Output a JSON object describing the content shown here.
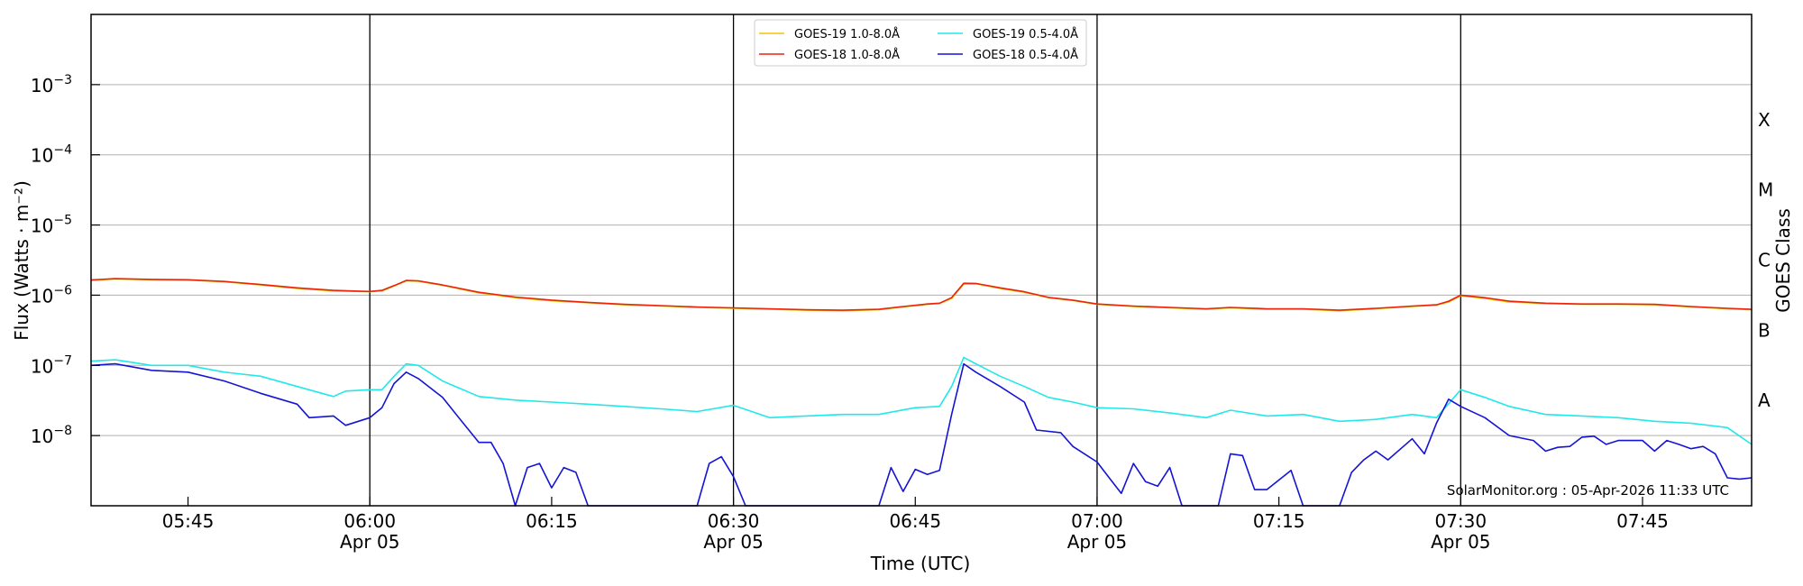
{
  "chart_data": {
    "type": "line",
    "xlabel": "Time (UTC)",
    "ylabel": "Flux (Watts · m⁻²)",
    "right_label": "GOES Class",
    "y_scale": "log",
    "ylim": [
      1e-09,
      0.01
    ],
    "xlim": [
      "05:37",
      "07:54"
    ],
    "y_ticks": [
      {
        "value": 1e-08,
        "base": "10",
        "exp": "−8"
      },
      {
        "value": 1e-07,
        "base": "10",
        "exp": "−7"
      },
      {
        "value": 1e-06,
        "base": "10",
        "exp": "−6"
      },
      {
        "value": 1e-05,
        "base": "10",
        "exp": "−5"
      },
      {
        "value": 0.0001,
        "base": "10",
        "exp": "−4"
      },
      {
        "value": 0.001,
        "base": "10",
        "exp": "−3"
      }
    ],
    "x_ticks": [
      {
        "time": "05:45",
        "label": "05:45",
        "sub": ""
      },
      {
        "time": "06:00",
        "label": "06:00",
        "sub": "Apr 05"
      },
      {
        "time": "06:15",
        "label": "06:15",
        "sub": ""
      },
      {
        "time": "06:30",
        "label": "06:30",
        "sub": "Apr 05"
      },
      {
        "time": "06:45",
        "label": "06:45",
        "sub": ""
      },
      {
        "time": "07:00",
        "label": "07:00",
        "sub": "Apr 05"
      },
      {
        "time": "07:15",
        "label": "07:15",
        "sub": ""
      },
      {
        "time": "07:30",
        "label": "07:30",
        "sub": "Apr 05"
      },
      {
        "time": "07:45",
        "label": "07:45",
        "sub": ""
      }
    ],
    "vertical_lines": [
      "06:00",
      "06:30",
      "07:00",
      "07:30"
    ],
    "goes_classes": [
      {
        "label": "A",
        "value": 3.16e-08
      },
      {
        "label": "B",
        "value": 3.16e-07
      },
      {
        "label": "C",
        "value": 3.16e-06
      },
      {
        "label": "M",
        "value": 3.16e-05
      },
      {
        "label": "X",
        "value": 0.000316
      }
    ],
    "grid": true,
    "legend_position": "top-center",
    "series": [
      {
        "name": "GOES-19 1.0-8.0Å",
        "color": "#f5c400",
        "points": [
          [
            "05:37",
            1.62e-06
          ],
          [
            "05:39",
            1.7e-06
          ],
          [
            "05:42",
            1.66e-06
          ],
          [
            "05:45",
            1.64e-06
          ],
          [
            "05:48",
            1.55e-06
          ],
          [
            "05:51",
            1.4e-06
          ],
          [
            "05:54",
            1.25e-06
          ],
          [
            "05:57",
            1.15e-06
          ],
          [
            "06:00",
            1.12e-06
          ],
          [
            "06:01",
            1.15e-06
          ],
          [
            "06:02",
            1.35e-06
          ],
          [
            "06:03",
            1.6e-06
          ],
          [
            "06:04",
            1.58e-06
          ],
          [
            "06:06",
            1.38e-06
          ],
          [
            "06:09",
            1.08e-06
          ],
          [
            "06:12",
            9.2e-07
          ],
          [
            "06:15",
            8.3e-07
          ],
          [
            "06:18",
            7.8e-07
          ],
          [
            "06:21",
            7.3e-07
          ],
          [
            "06:24",
            7e-07
          ],
          [
            "06:27",
            6.7e-07
          ],
          [
            "06:30",
            6.5e-07
          ],
          [
            "06:33",
            6.3e-07
          ],
          [
            "06:36",
            6.1e-07
          ],
          [
            "06:39",
            6e-07
          ],
          [
            "06:42",
            6.2e-07
          ],
          [
            "06:44",
            6.8e-07
          ],
          [
            "06:46",
            7.4e-07
          ],
          [
            "06:47",
            7.6e-07
          ],
          [
            "06:48",
            9e-07
          ],
          [
            "06:49",
            1.45e-06
          ],
          [
            "06:50",
            1.45e-06
          ],
          [
            "06:52",
            1.25e-06
          ],
          [
            "06:54",
            1.1e-06
          ],
          [
            "06:56",
            9.2e-07
          ],
          [
            "06:58",
            8.4e-07
          ],
          [
            "07:00",
            7.4e-07
          ],
          [
            "07:03",
            6.9e-07
          ],
          [
            "07:06",
            6.6e-07
          ],
          [
            "07:09",
            6.3e-07
          ],
          [
            "07:11",
            6.6e-07
          ],
          [
            "07:14",
            6.3e-07
          ],
          [
            "07:17",
            6.3e-07
          ],
          [
            "07:20",
            6e-07
          ],
          [
            "07:23",
            6.4e-07
          ],
          [
            "07:26",
            6.9e-07
          ],
          [
            "07:28",
            7.2e-07
          ],
          [
            "07:29",
            8e-07
          ],
          [
            "07:30",
            9.8e-07
          ],
          [
            "07:32",
            9e-07
          ],
          [
            "07:34",
            8e-07
          ],
          [
            "07:37",
            7.6e-07
          ],
          [
            "07:40",
            7.4e-07
          ],
          [
            "07:43",
            7.4e-07
          ],
          [
            "07:46",
            7.3e-07
          ],
          [
            "07:49",
            6.8e-07
          ],
          [
            "07:52",
            6.4e-07
          ],
          [
            "07:54",
            6.2e-07
          ]
        ]
      },
      {
        "name": "GOES-18 1.0-8.0Å",
        "color": "#e8250d",
        "points": [
          [
            "05:37",
            1.65e-06
          ],
          [
            "05:39",
            1.72e-06
          ],
          [
            "05:42",
            1.68e-06
          ],
          [
            "05:45",
            1.66e-06
          ],
          [
            "05:48",
            1.57e-06
          ],
          [
            "05:51",
            1.42e-06
          ],
          [
            "05:54",
            1.27e-06
          ],
          [
            "05:57",
            1.17e-06
          ],
          [
            "06:00",
            1.13e-06
          ],
          [
            "06:01",
            1.17e-06
          ],
          [
            "06:02",
            1.37e-06
          ],
          [
            "06:03",
            1.62e-06
          ],
          [
            "06:04",
            1.6e-06
          ],
          [
            "06:06",
            1.4e-06
          ],
          [
            "06:09",
            1.1e-06
          ],
          [
            "06:12",
            9.4e-07
          ],
          [
            "06:15",
            8.5e-07
          ],
          [
            "06:18",
            7.9e-07
          ],
          [
            "06:21",
            7.4e-07
          ],
          [
            "06:24",
            7.1e-07
          ],
          [
            "06:27",
            6.8e-07
          ],
          [
            "06:30",
            6.6e-07
          ],
          [
            "06:33",
            6.4e-07
          ],
          [
            "06:36",
            6.2e-07
          ],
          [
            "06:39",
            6.1e-07
          ],
          [
            "06:42",
            6.3e-07
          ],
          [
            "06:44",
            6.9e-07
          ],
          [
            "06:46",
            7.5e-07
          ],
          [
            "06:47",
            7.7e-07
          ],
          [
            "06:48",
            9.2e-07
          ],
          [
            "06:49",
            1.48e-06
          ],
          [
            "06:50",
            1.47e-06
          ],
          [
            "06:52",
            1.27e-06
          ],
          [
            "06:54",
            1.12e-06
          ],
          [
            "06:56",
            9.3e-07
          ],
          [
            "06:58",
            8.5e-07
          ],
          [
            "07:00",
            7.5e-07
          ],
          [
            "07:03",
            7e-07
          ],
          [
            "07:06",
            6.7e-07
          ],
          [
            "07:09",
            6.4e-07
          ],
          [
            "07:11",
            6.7e-07
          ],
          [
            "07:14",
            6.4e-07
          ],
          [
            "07:17",
            6.4e-07
          ],
          [
            "07:20",
            6.1e-07
          ],
          [
            "07:23",
            6.5e-07
          ],
          [
            "07:26",
            7e-07
          ],
          [
            "07:28",
            7.3e-07
          ],
          [
            "07:29",
            8.2e-07
          ],
          [
            "07:30",
            1e-06
          ],
          [
            "07:32",
            9.2e-07
          ],
          [
            "07:34",
            8.2e-07
          ],
          [
            "07:37",
            7.7e-07
          ],
          [
            "07:40",
            7.5e-07
          ],
          [
            "07:43",
            7.5e-07
          ],
          [
            "07:46",
            7.4e-07
          ],
          [
            "07:49",
            6.9e-07
          ],
          [
            "07:52",
            6.5e-07
          ],
          [
            "07:54",
            6.3e-07
          ]
        ]
      },
      {
        "name": "GOES-19 0.5-4.0Å",
        "color": "#22e8e8",
        "points": [
          [
            "05:37",
            1.15e-07
          ],
          [
            "05:39",
            1.2e-07
          ],
          [
            "05:42",
            1e-07
          ],
          [
            "05:45",
            1e-07
          ],
          [
            "05:48",
            8e-08
          ],
          [
            "05:51",
            7e-08
          ],
          [
            "05:54",
            5e-08
          ],
          [
            "05:57",
            3.6e-08
          ],
          [
            "05:58",
            4.3e-08
          ],
          [
            "06:00",
            4.5e-08
          ],
          [
            "06:01",
            4.5e-08
          ],
          [
            "06:02",
            7e-08
          ],
          [
            "06:03",
            1.05e-07
          ],
          [
            "06:04",
            1e-07
          ],
          [
            "06:06",
            6e-08
          ],
          [
            "06:09",
            3.6e-08
          ],
          [
            "06:12",
            3.2e-08
          ],
          [
            "06:15",
            3e-08
          ],
          [
            "06:18",
            2.8e-08
          ],
          [
            "06:21",
            2.6e-08
          ],
          [
            "06:24",
            2.4e-08
          ],
          [
            "06:27",
            2.2e-08
          ],
          [
            "06:30",
            2.7e-08
          ],
          [
            "06:33",
            1.8e-08
          ],
          [
            "06:36",
            1.9e-08
          ],
          [
            "06:39",
            2e-08
          ],
          [
            "06:42",
            2e-08
          ],
          [
            "06:45",
            2.5e-08
          ],
          [
            "06:47",
            2.6e-08
          ],
          [
            "06:48",
            5e-08
          ],
          [
            "06:49",
            1.3e-07
          ],
          [
            "06:50",
            1.05e-07
          ],
          [
            "06:52",
            7e-08
          ],
          [
            "06:54",
            5e-08
          ],
          [
            "06:56",
            3.5e-08
          ],
          [
            "06:58",
            3e-08
          ],
          [
            "07:00",
            2.5e-08
          ],
          [
            "07:03",
            2.4e-08
          ],
          [
            "07:06",
            2.1e-08
          ],
          [
            "07:09",
            1.8e-08
          ],
          [
            "07:11",
            2.3e-08
          ],
          [
            "07:14",
            1.9e-08
          ],
          [
            "07:17",
            2e-08
          ],
          [
            "07:20",
            1.6e-08
          ],
          [
            "07:23",
            1.7e-08
          ],
          [
            "07:26",
            2e-08
          ],
          [
            "07:28",
            1.8e-08
          ],
          [
            "07:30",
            4.5e-08
          ],
          [
            "07:32",
            3.5e-08
          ],
          [
            "07:34",
            2.6e-08
          ],
          [
            "07:37",
            2e-08
          ],
          [
            "07:40",
            1.9e-08
          ],
          [
            "07:43",
            1.8e-08
          ],
          [
            "07:46",
            1.6e-08
          ],
          [
            "07:49",
            1.5e-08
          ],
          [
            "07:52",
            1.3e-08
          ],
          [
            "07:54",
            7.5e-09
          ]
        ]
      },
      {
        "name": "GOES-18 0.5-4.0Å",
        "color": "#1414d4",
        "points": [
          [
            "05:37",
            1e-07
          ],
          [
            "05:39",
            1.05e-07
          ],
          [
            "05:42",
            8.5e-08
          ],
          [
            "05:45",
            8e-08
          ],
          [
            "05:48",
            6e-08
          ],
          [
            "05:51",
            4e-08
          ],
          [
            "05:54",
            2.8e-08
          ],
          [
            "05:55",
            1.8e-08
          ],
          [
            "05:57",
            1.9e-08
          ],
          [
            "05:58",
            1.4e-08
          ],
          [
            "06:00",
            1.8e-08
          ],
          [
            "06:01",
            2.5e-08
          ],
          [
            "06:02",
            5.5e-08
          ],
          [
            "06:03",
            8e-08
          ],
          [
            "06:04",
            6.5e-08
          ],
          [
            "06:06",
            3.5e-08
          ],
          [
            "06:08",
            1.3e-08
          ],
          [
            "06:09",
            8e-09
          ],
          [
            "06:10",
            8e-09
          ],
          [
            "06:11",
            4e-09
          ],
          [
            "06:12",
            1e-09
          ],
          [
            "06:13",
            3.5e-09
          ],
          [
            "06:14",
            4e-09
          ],
          [
            "06:15",
            1.8e-09
          ],
          [
            "06:16",
            3.5e-09
          ],
          [
            "06:17",
            3e-09
          ],
          [
            "06:18",
            1e-09
          ],
          [
            "06:27",
            1e-09
          ],
          [
            "06:28",
            4e-09
          ],
          [
            "06:29",
            5e-09
          ],
          [
            "06:30",
            2.6e-09
          ],
          [
            "06:31",
            1e-09
          ],
          [
            "06:42",
            1e-09
          ],
          [
            "06:43",
            3.5e-09
          ],
          [
            "06:44",
            1.6e-09
          ],
          [
            "06:45",
            3.3e-09
          ],
          [
            "06:46",
            2.8e-09
          ],
          [
            "06:47",
            3.2e-09
          ],
          [
            "06:48",
            2e-08
          ],
          [
            "06:49",
            1.05e-07
          ],
          [
            "06:50",
            8e-08
          ],
          [
            "06:52",
            5e-08
          ],
          [
            "06:54",
            3e-08
          ],
          [
            "06:55",
            1.2e-08
          ],
          [
            "06:57",
            1.1e-08
          ],
          [
            "06:58",
            7e-09
          ],
          [
            "07:00",
            4.2e-09
          ],
          [
            "07:01",
            2.5e-09
          ],
          [
            "07:02",
            1.5e-09
          ],
          [
            "07:03",
            4e-09
          ],
          [
            "07:04",
            2.2e-09
          ],
          [
            "07:05",
            1.9e-09
          ],
          [
            "07:06",
            3.5e-09
          ],
          [
            "07:07",
            1e-09
          ],
          [
            "07:10",
            1e-09
          ],
          [
            "07:11",
            5.5e-09
          ],
          [
            "07:12",
            5.2e-09
          ],
          [
            "07:13",
            1.7e-09
          ],
          [
            "07:14",
            1.7e-09
          ],
          [
            "07:16",
            3.2e-09
          ],
          [
            "07:17",
            1e-09
          ],
          [
            "07:20",
            1e-09
          ],
          [
            "07:21",
            3e-09
          ],
          [
            "07:22",
            4.5e-09
          ],
          [
            "07:23",
            6e-09
          ],
          [
            "07:24",
            4.5e-09
          ],
          [
            "07:26",
            9e-09
          ],
          [
            "07:27",
            5.5e-09
          ],
          [
            "07:28",
            1.5e-08
          ],
          [
            "07:29",
            3.3e-08
          ],
          [
            "07:30",
            2.6e-08
          ],
          [
            "07:32",
            1.8e-08
          ],
          [
            "07:34",
            1e-08
          ],
          [
            "07:36",
            8.5e-09
          ],
          [
            "07:37",
            6e-09
          ],
          [
            "07:38",
            6.8e-09
          ],
          [
            "07:39",
            7e-09
          ],
          [
            "07:40",
            9.5e-09
          ],
          [
            "07:41",
            9.8e-09
          ],
          [
            "07:42",
            7.5e-09
          ],
          [
            "07:43",
            8.5e-09
          ],
          [
            "07:45",
            8.5e-09
          ],
          [
            "07:46",
            6e-09
          ],
          [
            "07:47",
            8.5e-09
          ],
          [
            "07:48",
            7.5e-09
          ],
          [
            "07:49",
            6.5e-09
          ],
          [
            "07:50",
            7e-09
          ],
          [
            "07:51",
            5.5e-09
          ],
          [
            "07:52",
            2.5e-09
          ],
          [
            "07:53",
            2.4e-09
          ],
          [
            "07:54",
            2.5e-09
          ]
        ]
      }
    ]
  },
  "credit": "SolarMonitor.org : 05-Apr-2026 11:33 UTC"
}
